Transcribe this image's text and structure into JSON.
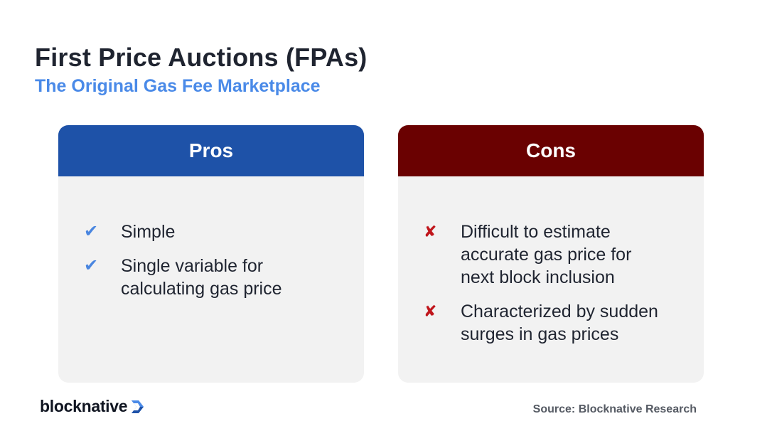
{
  "title": "First Price Auctions (FPAs)",
  "subtitle": "The Original Gas Fee Marketplace",
  "pros": {
    "header": "Pros",
    "color": "#1e52a8",
    "items": [
      {
        "icon": "✔",
        "text": "Simple"
      },
      {
        "icon": "✔",
        "text": "Single variable for calculating gas price"
      }
    ]
  },
  "cons": {
    "header": "Cons",
    "color": "#6a0101",
    "items": [
      {
        "icon": "✘",
        "text": "Difficult to estimate accurate gas price for next block inclusion"
      },
      {
        "icon": "✘",
        "text": "Characterized by sudden surges in gas prices"
      }
    ]
  },
  "footer": {
    "brand": "blocknative",
    "source": "Source: Blocknative Research"
  },
  "colors": {
    "title": "#1f2430",
    "subtitle": "#4a8ae8",
    "card_background": "#f2f2f2",
    "check": "#4a86e0",
    "cross": "#c0161c"
  }
}
